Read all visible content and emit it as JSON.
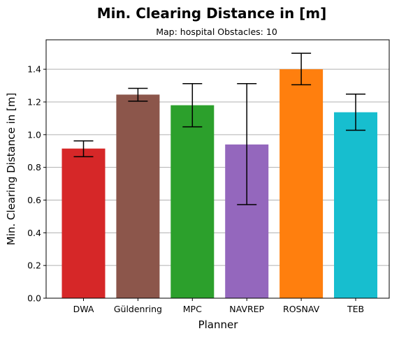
{
  "chart_data": {
    "type": "bar",
    "title": "Min. Clearing Distance in [m]",
    "subtitle": "Map: hospital Obstacles: 10",
    "xlabel": "Planner",
    "ylabel": "Min. Clearing Distance in [m]",
    "categories": [
      "DWA",
      "Güldenring",
      "MPC",
      "NAVREP",
      "ROSNAV",
      "TEB"
    ],
    "values": [
      0.915,
      1.245,
      1.18,
      0.94,
      1.4,
      1.137
    ],
    "error_low": [
      0.865,
      1.205,
      1.048,
      0.572,
      1.305,
      1.027
    ],
    "error_high": [
      0.962,
      1.283,
      1.312,
      1.312,
      1.498,
      1.248
    ],
    "colors": [
      "#d62728",
      "#8c564b",
      "#2ca02c",
      "#9467bd",
      "#ff7f0e",
      "#17becf"
    ],
    "ylim": [
      0,
      1.58
    ],
    "yticks": [
      0.0,
      0.2,
      0.4,
      0.6,
      0.8,
      1.0,
      1.2,
      1.4
    ],
    "ytick_labels": [
      "0.0",
      "0.2",
      "0.4",
      "0.6",
      "0.8",
      "1.0",
      "1.2",
      "1.4"
    ],
    "grid": "y-major"
  }
}
